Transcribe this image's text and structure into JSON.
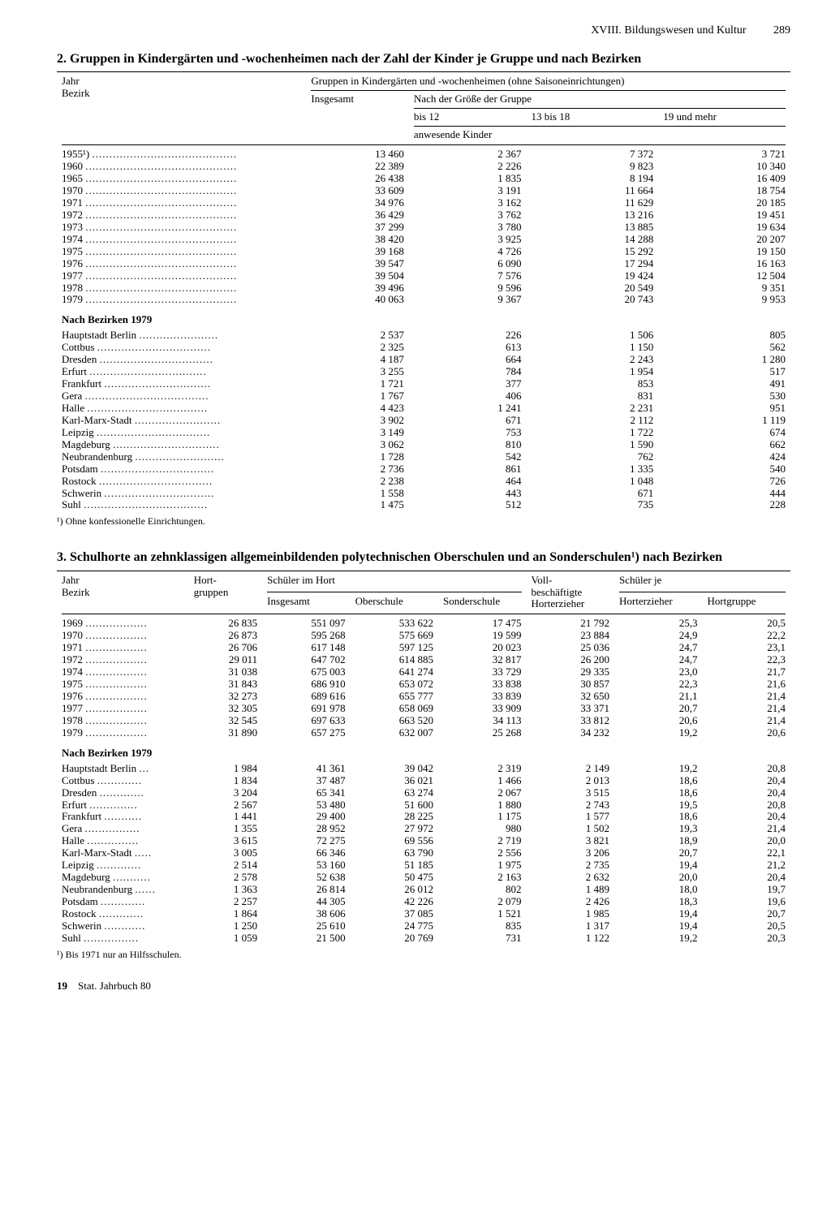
{
  "header": {
    "section": "XVIII. Bildungswesen und Kultur",
    "page": "289"
  },
  "table1": {
    "title": "2. Gruppen in Kindergärten und -wochenheimen nach der Zahl der Kinder je Gruppe und nach Bezirken",
    "col_stub1": "Jahr",
    "col_stub2": "Bezirk",
    "spanner": "Gruppen in Kindergärten und -wochenheimen (ohne Saisoneinrichtungen)",
    "h_insgesamt": "Insgesamt",
    "h_groupsize": "Nach der Größe der Gruppe",
    "h_bis12": "bis 12",
    "h_13bis18": "13 bis 18",
    "h_19mehr": "19 und mehr",
    "h_anwesend": "anwesende Kinder",
    "years": [
      {
        "label": "1955¹)",
        "v": [
          "13 460",
          "2 367",
          "7 372",
          "3 721"
        ]
      },
      {
        "label": "1960",
        "v": [
          "22 389",
          "2 226",
          "9 823",
          "10 340"
        ]
      },
      {
        "label": "1965",
        "v": [
          "26 438",
          "1 835",
          "8 194",
          "16 409"
        ]
      },
      {
        "label": "1970",
        "v": [
          "33 609",
          "3 191",
          "11 664",
          "18 754"
        ]
      },
      {
        "label": "1971",
        "v": [
          "34 976",
          "3 162",
          "11 629",
          "20 185"
        ]
      },
      {
        "label": "1972",
        "v": [
          "36 429",
          "3 762",
          "13 216",
          "19 451"
        ]
      },
      {
        "label": "1973",
        "v": [
          "37 299",
          "3 780",
          "13 885",
          "19 634"
        ]
      },
      {
        "label": "1974",
        "v": [
          "38 420",
          "3 925",
          "14 288",
          "20 207"
        ]
      },
      {
        "label": "1975",
        "v": [
          "39 168",
          "4 726",
          "15 292",
          "19 150"
        ]
      },
      {
        "label": "1976",
        "v": [
          "39 547",
          "6 090",
          "17 294",
          "16 163"
        ]
      },
      {
        "label": "1977",
        "v": [
          "39 504",
          "7 576",
          "19 424",
          "12 504"
        ]
      },
      {
        "label": "1978",
        "v": [
          "39 496",
          "9 596",
          "20 549",
          "9 351"
        ]
      },
      {
        "label": "1979",
        "v": [
          "40 063",
          "9 367",
          "20 743",
          "9 953"
        ]
      }
    ],
    "bezirk_head": "Nach Bezirken 1979",
    "bezirke": [
      {
        "label": "Hauptstadt Berlin",
        "v": [
          "2 537",
          "226",
          "1 506",
          "805"
        ]
      },
      {
        "label": "Cottbus",
        "v": [
          "2 325",
          "613",
          "1 150",
          "562"
        ]
      },
      {
        "label": "Dresden",
        "v": [
          "4 187",
          "664",
          "2 243",
          "1 280"
        ]
      },
      {
        "label": "Erfurt",
        "v": [
          "3 255",
          "784",
          "1 954",
          "517"
        ]
      },
      {
        "label": "Frankfurt",
        "v": [
          "1 721",
          "377",
          "853",
          "491"
        ]
      },
      {
        "label": "Gera",
        "v": [
          "1 767",
          "406",
          "831",
          "530"
        ]
      },
      {
        "label": "Halle",
        "v": [
          "4 423",
          "1 241",
          "2 231",
          "951"
        ]
      },
      {
        "label": "Karl-Marx-Stadt",
        "v": [
          "3 902",
          "671",
          "2 112",
          "1 119"
        ]
      },
      {
        "label": "Leipzig",
        "v": [
          "3 149",
          "753",
          "1 722",
          "674"
        ]
      },
      {
        "label": "Magdeburg",
        "v": [
          "3 062",
          "810",
          "1 590",
          "662"
        ]
      },
      {
        "label": "Neubrandenburg",
        "v": [
          "1 728",
          "542",
          "762",
          "424"
        ]
      },
      {
        "label": "Potsdam",
        "v": [
          "2 736",
          "861",
          "1 335",
          "540"
        ]
      },
      {
        "label": "Rostock",
        "v": [
          "2 238",
          "464",
          "1 048",
          "726"
        ]
      },
      {
        "label": "Schwerin",
        "v": [
          "1 558",
          "443",
          "671",
          "444"
        ]
      },
      {
        "label": "Suhl",
        "v": [
          "1 475",
          "512",
          "735",
          "228"
        ]
      }
    ],
    "footnote": "¹) Ohne konfessionelle Einrichtungen."
  },
  "table2": {
    "title": "3. Schulhorte an zehnklassigen allgemeinbildenden polytechnischen Oberschulen und an Sonderschulen¹) nach Bezirken",
    "col_stub1": "Jahr",
    "col_stub2": "Bezirk",
    "h_hortgruppen": "Hort-\ngruppen",
    "h_schueler_spanner": "Schüler im Hort",
    "h_insgesamt": "Insgesamt",
    "h_oberschule": "Oberschule",
    "h_sonderschule": "Sonderschule",
    "h_voll": "Voll-\nbeschäftigte\nHorterzieher",
    "h_schuelerje": "Schüler je",
    "h_je_erzieher": "Horterzieher",
    "h_je_gruppe": "Hortgruppe",
    "years": [
      {
        "label": "1969",
        "v": [
          "26 835",
          "551 097",
          "533 622",
          "17 475",
          "21 792",
          "25,3",
          "20,5"
        ]
      },
      {
        "label": "1970",
        "v": [
          "26 873",
          "595 268",
          "575 669",
          "19 599",
          "23 884",
          "24,9",
          "22,2"
        ]
      },
      {
        "label": "1971",
        "v": [
          "26 706",
          "617 148",
          "597 125",
          "20 023",
          "25 036",
          "24,7",
          "23,1"
        ]
      },
      {
        "label": "1972",
        "v": [
          "29 011",
          "647 702",
          "614 885",
          "32 817",
          "26 200",
          "24,7",
          "22,3"
        ]
      },
      {
        "label": "1974",
        "v": [
          "31 038",
          "675 003",
          "641 274",
          "33 729",
          "29 335",
          "23,0",
          "21,7"
        ]
      },
      {
        "label": "1975",
        "v": [
          "31 843",
          "686 910",
          "653 072",
          "33 838",
          "30 857",
          "22,3",
          "21,6"
        ]
      },
      {
        "label": "1976",
        "v": [
          "32 273",
          "689 616",
          "655 777",
          "33 839",
          "32 650",
          "21,1",
          "21,4"
        ]
      },
      {
        "label": "1977",
        "v": [
          "32 305",
          "691 978",
          "658 069",
          "33 909",
          "33 371",
          "20,7",
          "21,4"
        ]
      },
      {
        "label": "1978",
        "v": [
          "32 545",
          "697 633",
          "663 520",
          "34 113",
          "33 812",
          "20,6",
          "21,4"
        ]
      },
      {
        "label": "1979",
        "v": [
          "31 890",
          "657 275",
          "632 007",
          "25 268",
          "34 232",
          "19,2",
          "20,6"
        ]
      }
    ],
    "bezirk_head": "Nach Bezirken 1979",
    "bezirke": [
      {
        "label": "Hauptstadt Berlin",
        "v": [
          "1 984",
          "41 361",
          "39 042",
          "2 319",
          "2 149",
          "19,2",
          "20,8"
        ]
      },
      {
        "label": "Cottbus",
        "v": [
          "1 834",
          "37 487",
          "36 021",
          "1 466",
          "2 013",
          "18,6",
          "20,4"
        ]
      },
      {
        "label": "Dresden",
        "v": [
          "3 204",
          "65 341",
          "63 274",
          "2 067",
          "3 515",
          "18,6",
          "20,4"
        ]
      },
      {
        "label": "Erfurt",
        "v": [
          "2 567",
          "53 480",
          "51 600",
          "1 880",
          "2 743",
          "19,5",
          "20,8"
        ]
      },
      {
        "label": "Frankfurt",
        "v": [
          "1 441",
          "29 400",
          "28 225",
          "1 175",
          "1 577",
          "18,6",
          "20,4"
        ]
      },
      {
        "label": "Gera",
        "v": [
          "1 355",
          "28 952",
          "27 972",
          "980",
          "1 502",
          "19,3",
          "21,4"
        ]
      },
      {
        "label": "Halle",
        "v": [
          "3 615",
          "72 275",
          "69 556",
          "2 719",
          "3 821",
          "18,9",
          "20,0"
        ]
      },
      {
        "label": "Karl-Marx-Stadt",
        "v": [
          "3 005",
          "66 346",
          "63 790",
          "2 556",
          "3 206",
          "20,7",
          "22,1"
        ]
      },
      {
        "label": "Leipzig",
        "v": [
          "2 514",
          "53 160",
          "51 185",
          "1 975",
          "2 735",
          "19,4",
          "21,2"
        ]
      },
      {
        "label": "Magdeburg",
        "v": [
          "2 578",
          "52 638",
          "50 475",
          "2 163",
          "2 632",
          "20,0",
          "20,4"
        ]
      },
      {
        "label": "Neubrandenburg",
        "v": [
          "1 363",
          "26 814",
          "26 012",
          "802",
          "1 489",
          "18,0",
          "19,7"
        ]
      },
      {
        "label": "Potsdam",
        "v": [
          "2 257",
          "44 305",
          "42 226",
          "2 079",
          "2 426",
          "18,3",
          "19,6"
        ]
      },
      {
        "label": "Rostock",
        "v": [
          "1 864",
          "38 606",
          "37 085",
          "1 521",
          "1 985",
          "19,4",
          "20,7"
        ]
      },
      {
        "label": "Schwerin",
        "v": [
          "1 250",
          "25 610",
          "24 775",
          "835",
          "1 317",
          "19,4",
          "20,5"
        ]
      },
      {
        "label": "Suhl",
        "v": [
          "1 059",
          "21 500",
          "20 769",
          "731",
          "1 122",
          "19,2",
          "20,3"
        ]
      }
    ],
    "footnote": "¹) Bis 1971 nur an Hilfsschulen."
  },
  "footer": {
    "pg": "19",
    "ref": "Stat. Jahrbuch 80"
  }
}
